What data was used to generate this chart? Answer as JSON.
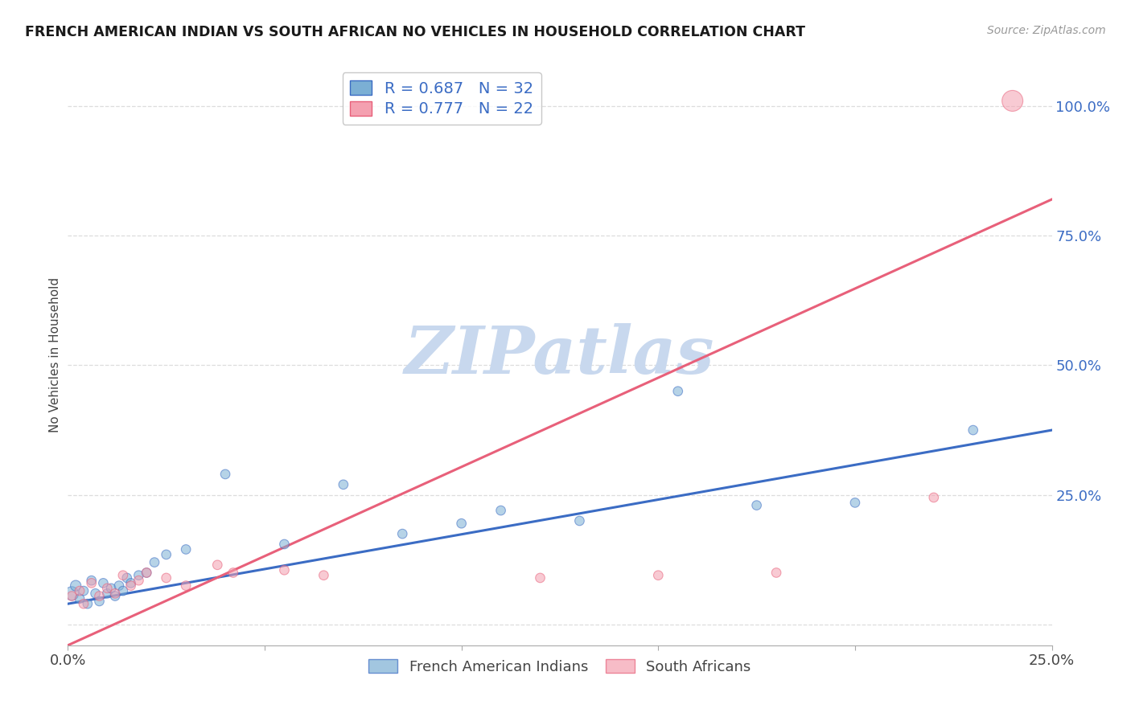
{
  "title": "FRENCH AMERICAN INDIAN VS SOUTH AFRICAN NO VEHICLES IN HOUSEHOLD CORRELATION CHART",
  "source": "Source: ZipAtlas.com",
  "ylabel": "No Vehicles in Household",
  "xlim": [
    0.0,
    0.25
  ],
  "ylim": [
    -0.04,
    1.08
  ],
  "yticks": [
    0.0,
    0.25,
    0.5,
    0.75,
    1.0
  ],
  "xticks": [
    0.0,
    0.05,
    0.1,
    0.15,
    0.2,
    0.25
  ],
  "blue_R": 0.687,
  "blue_N": 32,
  "pink_R": 0.777,
  "pink_N": 22,
  "blue_color": "#7BAFD4",
  "pink_color": "#F4A0B0",
  "blue_line_color": "#3B6CC4",
  "pink_line_color": "#E8607A",
  "watermark_text": "ZIPatlas",
  "watermark_color": "#C8D8EE",
  "legend_label_blue": "French American Indians",
  "legend_label_pink": "South Africans",
  "blue_scatter_x": [
    0.001,
    0.002,
    0.003,
    0.004,
    0.005,
    0.006,
    0.007,
    0.008,
    0.009,
    0.01,
    0.011,
    0.012,
    0.013,
    0.014,
    0.015,
    0.016,
    0.018,
    0.02,
    0.022,
    0.025,
    0.03,
    0.04,
    0.055,
    0.07,
    0.085,
    0.1,
    0.11,
    0.13,
    0.155,
    0.175,
    0.2,
    0.23
  ],
  "blue_scatter_y": [
    0.06,
    0.075,
    0.05,
    0.065,
    0.04,
    0.085,
    0.06,
    0.045,
    0.08,
    0.06,
    0.07,
    0.055,
    0.075,
    0.065,
    0.09,
    0.08,
    0.095,
    0.1,
    0.12,
    0.135,
    0.145,
    0.29,
    0.155,
    0.27,
    0.175,
    0.195,
    0.22,
    0.2,
    0.45,
    0.23,
    0.235,
    0.375
  ],
  "blue_scatter_size": [
    150,
    90,
    70,
    70,
    70,
    70,
    70,
    70,
    70,
    70,
    70,
    70,
    70,
    70,
    70,
    70,
    70,
    70,
    70,
    70,
    70,
    70,
    70,
    70,
    70,
    70,
    70,
    70,
    70,
    70,
    70,
    70
  ],
  "pink_scatter_x": [
    0.001,
    0.003,
    0.004,
    0.006,
    0.008,
    0.01,
    0.012,
    0.014,
    0.016,
    0.018,
    0.02,
    0.025,
    0.03,
    0.038,
    0.042,
    0.055,
    0.065,
    0.12,
    0.15,
    0.18,
    0.22,
    0.24
  ],
  "pink_scatter_y": [
    0.055,
    0.065,
    0.04,
    0.08,
    0.055,
    0.07,
    0.06,
    0.095,
    0.075,
    0.085,
    0.1,
    0.09,
    0.075,
    0.115,
    0.1,
    0.105,
    0.095,
    0.09,
    0.095,
    0.1,
    0.245,
    1.01
  ],
  "pink_scatter_size": [
    70,
    70,
    70,
    70,
    70,
    70,
    70,
    70,
    70,
    70,
    70,
    70,
    70,
    70,
    70,
    70,
    70,
    70,
    70,
    70,
    70,
    350
  ],
  "blue_line_x0": 0.0,
  "blue_line_x1": 0.25,
  "blue_line_y0": 0.04,
  "blue_line_y1": 0.375,
  "pink_line_x0": 0.0,
  "pink_line_x1": 0.25,
  "pink_line_y0": -0.04,
  "pink_line_y1": 0.82,
  "grid_color": "#DDDDDD",
  "spine_color": "#AAAAAA",
  "tick_color_x": "#444444",
  "tick_color_y": "#3B6CC4"
}
